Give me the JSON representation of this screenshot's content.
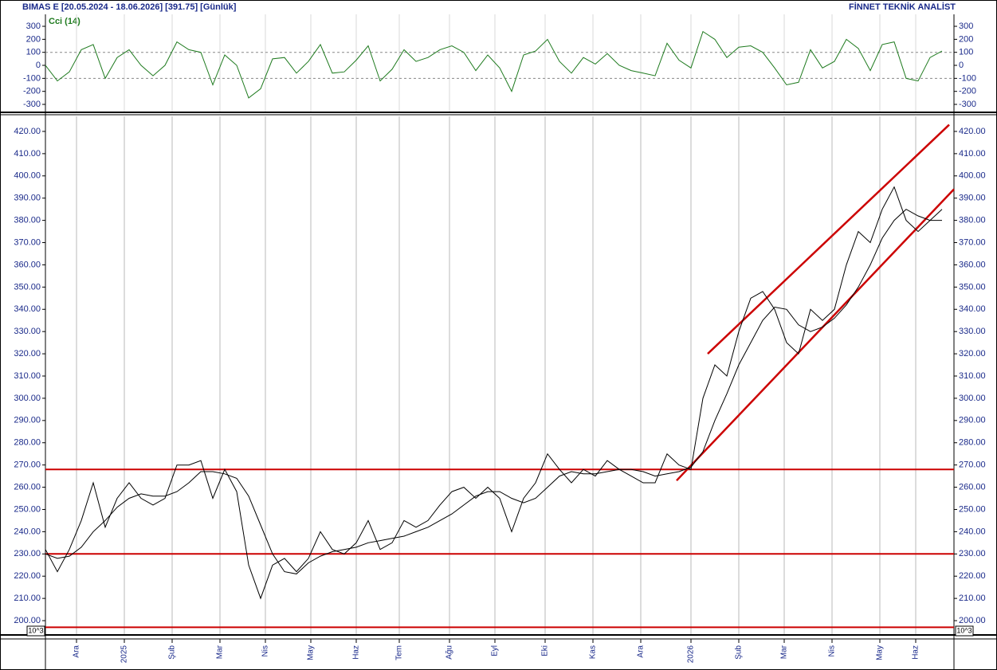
{
  "chart_data": [
    {
      "type": "line",
      "title": "Cci (14)",
      "x": [
        0,
        5,
        10,
        15,
        20,
        25,
        30,
        35,
        40,
        45,
        50,
        55,
        60,
        65,
        70,
        75,
        80,
        85,
        90,
        95,
        100,
        105,
        110,
        115,
        120,
        125,
        130,
        135,
        140,
        145,
        150,
        155,
        160,
        165,
        170,
        175,
        180,
        185,
        190,
        195,
        200,
        205,
        210,
        215,
        220,
        225,
        230,
        235,
        240,
        245,
        250,
        255,
        260,
        265,
        270,
        275,
        280,
        285,
        290,
        295,
        300,
        305,
        310,
        315,
        320,
        325,
        330,
        335,
        340,
        345,
        350,
        355,
        360,
        365,
        370,
        375
      ],
      "series": [
        {
          "color": "#1e7a1e",
          "values": [
            0,
            -120,
            -50,
            120,
            160,
            -100,
            60,
            120,
            0,
            -80,
            0,
            180,
            120,
            100,
            -150,
            80,
            0,
            -250,
            -180,
            50,
            60,
            -60,
            30,
            160,
            -60,
            -50,
            40,
            150,
            -120,
            -30,
            120,
            30,
            60,
            120,
            150,
            100,
            -40,
            80,
            -20,
            -200,
            80,
            110,
            200,
            30,
            -60,
            60,
            10,
            90,
            0,
            -40,
            -60,
            -80,
            170,
            40,
            -20,
            260,
            200,
            60,
            140,
            150,
            100,
            -20,
            -150,
            -130,
            120,
            -20,
            30,
            200,
            130,
            -40,
            160,
            180,
            -100,
            -120,
            60,
            110
          ]
        }
      ],
      "xlim": [
        0,
        380
      ],
      "ylim": [
        -355,
        392
      ],
      "yticks": [
        300,
        200,
        100,
        0,
        -100,
        -200,
        -300
      ],
      "reference_lines": [
        100,
        -100
      ]
    },
    {
      "type": "line",
      "title": "BIMAS E  [20.05.2024 - 18.06.2026]  [391.75]  [Günlük]",
      "source": "FİNNET TEKNİK ANALİST",
      "scale_label": "10^3",
      "x": [
        0,
        5,
        10,
        15,
        20,
        25,
        30,
        35,
        40,
        45,
        50,
        55,
        60,
        65,
        70,
        75,
        80,
        85,
        90,
        95,
        100,
        105,
        110,
        115,
        120,
        125,
        130,
        135,
        140,
        145,
        150,
        155,
        160,
        165,
        170,
        175,
        180,
        185,
        190,
        195,
        200,
        205,
        210,
        215,
        220,
        225,
        230,
        235,
        240,
        245,
        250,
        255,
        260,
        265,
        270,
        275,
        280,
        285,
        290,
        295,
        300,
        305,
        310,
        315,
        320,
        325,
        330,
        335,
        340,
        345,
        350,
        355,
        360,
        365,
        370,
        375
      ],
      "series": [
        {
          "color": "#000000",
          "values": [
            232,
            222,
            232,
            245,
            262,
            242,
            255,
            262,
            255,
            252,
            255,
            270,
            270,
            272,
            255,
            268,
            258,
            225,
            210,
            225,
            228,
            222,
            228,
            240,
            232,
            230,
            235,
            245,
            232,
            235,
            245,
            242,
            245,
            252,
            258,
            260,
            255,
            260,
            255,
            240,
            255,
            262,
            275,
            268,
            262,
            268,
            265,
            272,
            268,
            265,
            262,
            262,
            275,
            270,
            268,
            300,
            315,
            310,
            330,
            345,
            348,
            340,
            325,
            320,
            340,
            335,
            340,
            360,
            375,
            370,
            385,
            395,
            380,
            375,
            380,
            385
          ]
        },
        {
          "color": "#000000",
          "values": [
            230,
            228,
            229,
            233,
            240,
            245,
            251,
            255,
            257,
            256,
            256,
            258,
            262,
            267,
            267,
            266,
            264,
            256,
            243,
            230,
            222,
            221,
            226,
            229,
            231,
            232,
            233,
            235,
            236,
            237,
            238,
            240,
            242,
            245,
            248,
            252,
            256,
            258,
            258,
            255,
            253,
            255,
            260,
            265,
            267,
            266,
            266,
            267,
            268,
            268,
            267,
            265,
            266,
            267,
            269,
            276,
            290,
            302,
            315,
            325,
            335,
            341,
            340,
            333,
            330,
            332,
            336,
            342,
            350,
            360,
            372,
            380,
            385,
            382,
            380,
            380
          ]
        }
      ],
      "reference_lines": [
        268,
        230,
        197
      ],
      "channel_lines": [
        {
          "x": [
            277,
            378
          ],
          "y": [
            320,
            423
          ]
        },
        {
          "x": [
            264,
            380
          ],
          "y": [
            263,
            394
          ]
        }
      ],
      "line_color": "#cc0000",
      "xlim": [
        0,
        380
      ],
      "ylim": [
        195,
        425
      ],
      "xticks": [
        {
          "value": 13,
          "label": "Ara"
        },
        {
          "value": 33,
          "label": "2025"
        },
        {
          "value": 53,
          "label": "Şub"
        },
        {
          "value": 73,
          "label": "Mar"
        },
        {
          "value": 92,
          "label": "Nis"
        },
        {
          "value": 111,
          "label": "May"
        },
        {
          "value": 130,
          "label": "Haz"
        },
        {
          "value": 148,
          "label": "Tem"
        },
        {
          "value": 169,
          "label": "Ağu"
        },
        {
          "value": 188,
          "label": "Eyl"
        },
        {
          "value": 209,
          "label": "Eki"
        },
        {
          "value": 229,
          "label": "Kas"
        },
        {
          "value": 249,
          "label": "Ara"
        },
        {
          "value": 270,
          "label": "2026"
        },
        {
          "value": 290,
          "label": "Şub"
        },
        {
          "value": 309,
          "label": "Mar"
        },
        {
          "value": 329,
          "label": "Nis"
        },
        {
          "value": 349,
          "label": "May"
        },
        {
          "value": 364,
          "label": "Haz"
        }
      ],
      "yticks": [
        {
          "value": 200,
          "label": "200.00"
        },
        {
          "value": 210,
          "label": "210.00"
        },
        {
          "value": 220,
          "label": "220.00"
        },
        {
          "value": 230,
          "label": "230.00"
        },
        {
          "value": 240,
          "label": "240.00"
        },
        {
          "value": 250,
          "label": "250.00"
        },
        {
          "value": 260,
          "label": "260.00"
        },
        {
          "value": 270,
          "label": "270.00"
        },
        {
          "value": 280,
          "label": "280.00"
        },
        {
          "value": 290,
          "label": "290.00"
        },
        {
          "value": 300,
          "label": "300.00"
        },
        {
          "value": 310,
          "label": "310.00"
        },
        {
          "value": 320,
          "label": "320.00"
        },
        {
          "value": 330,
          "label": "330.00"
        },
        {
          "value": 340,
          "label": "340.00"
        },
        {
          "value": 350,
          "label": "350.00"
        },
        {
          "value": 360,
          "label": "360.00"
        },
        {
          "value": 370,
          "label": "370.00"
        },
        {
          "value": 380,
          "label": "380.00"
        },
        {
          "value": 390,
          "label": "390.00"
        },
        {
          "value": 400,
          "label": "400.00"
        },
        {
          "value": 410,
          "label": "410.00"
        },
        {
          "value": 420,
          "label": "420.00"
        }
      ],
      "grid": true
    }
  ]
}
